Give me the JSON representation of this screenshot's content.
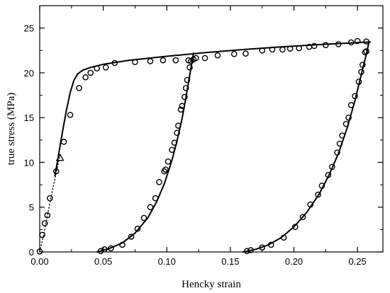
{
  "chart_data": {
    "type": "scatter",
    "xlabel": "Hencky strain",
    "ylabel": "true stress (MPa)",
    "xlim": [
      0.0,
      0.27
    ],
    "ylim": [
      0,
      27.5
    ],
    "xticks": [
      0.0,
      0.05,
      0.1,
      0.15,
      0.2,
      0.25
    ],
    "xtick_labels": [
      "0.00",
      "0.05",
      "0.10",
      "0.15",
      "0.20",
      "0.25"
    ],
    "yticks": [
      0,
      5,
      10,
      15,
      20,
      25
    ],
    "ytick_labels": [
      "0",
      "5",
      "10",
      "15",
      "20",
      "25"
    ],
    "grid": false,
    "colors": {
      "axes": "#000000",
      "markers": "#000000",
      "curves": "#000000"
    },
    "series": [
      {
        "type": "line",
        "style": "solid",
        "x": [
          0.012,
          0.015,
          0.018,
          0.021,
          0.024,
          0.027,
          0.03,
          0.034,
          0.04,
          0.05,
          0.07,
          0.1,
          0.13,
          0.16,
          0.19,
          0.22,
          0.24,
          0.26
        ],
        "y": [
          8.5,
          11.0,
          13.5,
          15.8,
          17.8,
          19.2,
          19.9,
          20.3,
          20.6,
          20.95,
          21.4,
          21.85,
          22.25,
          22.6,
          22.9,
          23.15,
          23.3,
          23.45
        ]
      },
      {
        "type": "line",
        "style": "dotted",
        "x": [
          0.0,
          0.004,
          0.008,
          0.012,
          0.016
        ],
        "y": [
          0.0,
          2.5,
          5.5,
          8.2,
          10.8
        ]
      },
      {
        "type": "line",
        "style": "solid",
        "x": [
          0.045,
          0.055,
          0.065,
          0.075,
          0.085,
          0.092,
          0.098,
          0.104,
          0.108,
          0.112,
          0.115,
          0.118,
          0.121
        ],
        "y": [
          0.0,
          0.4,
          1.0,
          2.1,
          3.8,
          5.6,
          7.6,
          10.2,
          12.4,
          14.9,
          17.2,
          19.7,
          22.2
        ]
      },
      {
        "type": "line",
        "style": "solid",
        "x": [
          0.16,
          0.17,
          0.18,
          0.19,
          0.2,
          0.21,
          0.22,
          0.228,
          0.235,
          0.242,
          0.248,
          0.253,
          0.257,
          0.259
        ],
        "y": [
          0.0,
          0.3,
          0.8,
          1.6,
          2.8,
          4.4,
          6.5,
          8.7,
          11.0,
          13.9,
          16.9,
          19.8,
          22.1,
          23.4
        ]
      },
      {
        "type": "scatter",
        "marker": "circle",
        "x": [
          0.0,
          0.002,
          0.004,
          0.006,
          0.008,
          0.013,
          0.019,
          0.024,
          0.031,
          0.036,
          0.04,
          0.045,
          0.052,
          0.059,
          0.075,
          0.087,
          0.097,
          0.107,
          0.117,
          0.123,
          0.13,
          0.14,
          0.153,
          0.162,
          0.175,
          0.183,
          0.191,
          0.197,
          0.204,
          0.212,
          0.216,
          0.225,
          0.235,
          0.245,
          0.25,
          0.257
        ],
        "y": [
          0.05,
          1.9,
          3.2,
          4.1,
          6.0,
          9.0,
          12.3,
          15.3,
          18.3,
          19.5,
          20.0,
          20.5,
          20.6,
          21.1,
          21.2,
          21.3,
          21.4,
          21.4,
          21.4,
          21.65,
          21.65,
          21.95,
          22.1,
          22.15,
          22.5,
          22.6,
          22.6,
          22.7,
          22.75,
          22.9,
          23.0,
          23.1,
          23.2,
          23.4,
          23.55,
          23.5
        ]
      },
      {
        "type": "scatter",
        "marker": "circle",
        "x": [
          0.048,
          0.051,
          0.056,
          0.065,
          0.072,
          0.077,
          0.082,
          0.087,
          0.091,
          0.094,
          0.098,
          0.099,
          0.101,
          0.104,
          0.106,
          0.108,
          0.109,
          0.111,
          0.112,
          0.114,
          0.115,
          0.116,
          0.118,
          0.119,
          0.121
        ],
        "y": [
          0.1,
          0.3,
          0.4,
          0.8,
          1.7,
          2.6,
          3.8,
          5.0,
          6.0,
          7.8,
          9.0,
          9.2,
          10.1,
          11.4,
          12.2,
          13.3,
          14.1,
          15.9,
          16.3,
          17.3,
          18.3,
          19.2,
          20.6,
          21.3,
          21.5
        ]
      },
      {
        "type": "scatter",
        "marker": "circle",
        "x": [
          0.163,
          0.166,
          0.175,
          0.182,
          0.192,
          0.201,
          0.207,
          0.213,
          0.219,
          0.222,
          0.227,
          0.23,
          0.234,
          0.236,
          0.238,
          0.241,
          0.243,
          0.245,
          0.248,
          0.251,
          0.253,
          0.254,
          0.256,
          0.257
        ],
        "y": [
          0.1,
          0.2,
          0.5,
          0.8,
          1.6,
          2.8,
          3.9,
          5.3,
          6.4,
          7.4,
          8.6,
          9.5,
          11.1,
          12.1,
          13.0,
          14.3,
          15.0,
          16.4,
          17.4,
          19.0,
          20.1,
          20.9,
          22.3,
          22.4
        ]
      },
      {
        "type": "scatter",
        "marker": "triangle",
        "x": [
          0.016
        ],
        "y": [
          10.5
        ]
      }
    ]
  }
}
